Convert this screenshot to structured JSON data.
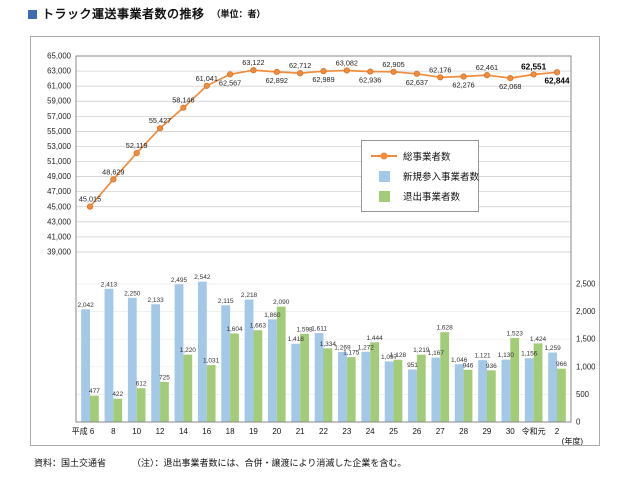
{
  "title": {
    "text": "トラック運送事業者数の推移",
    "unit": "（単位：者）"
  },
  "legend": [
    {
      "label": "総事業者数",
      "type": "line",
      "color": "#f08c3c"
    },
    {
      "label": "新規参入事業者数",
      "type": "bar",
      "color": "#a3c8e8"
    },
    {
      "label": "退出事業者数",
      "type": "bar",
      "color": "#a2cc78"
    }
  ],
  "footer": {
    "source": "資料：国土交通省",
    "note": "（注）：退出事業者数には、合併・譲渡により消滅した企業を含む。"
  },
  "chart_data": {
    "type": "combo",
    "title": "トラック運送事業者数の推移（単位：者）",
    "categories": [
      "平成 6",
      "8",
      "10",
      "12",
      "14",
      "16",
      "18",
      "19",
      "20",
      "21",
      "22",
      "23",
      "24",
      "25",
      "26",
      "27",
      "28",
      "29",
      "30",
      "令和元",
      "2"
    ],
    "x_axis_suffix": "(年度)",
    "left_axis": {
      "min": 39000,
      "max": 65000,
      "step": 2000
    },
    "right_axis": {
      "min": 0,
      "max": 2500,
      "step": 500
    },
    "grid": true,
    "legend_position": "inside-right",
    "series": [
      {
        "name": "総事業者数",
        "type": "line",
        "axis": "left",
        "color": "#f08c3c",
        "values": [
          45015,
          48629,
          52119,
          55427,
          58146,
          61041,
          62567,
          63122,
          62892,
          62712,
          62989,
          63082,
          62936,
          62905,
          62637,
          62176,
          62276,
          62461,
          62068,
          62551,
          62844
        ],
        "label_positions": [
          "above",
          "above",
          "above",
          "above",
          "above",
          "above",
          "below",
          "above",
          "below",
          "above",
          "below",
          "above",
          "below",
          "above",
          "below",
          "above",
          "below",
          "above",
          "below",
          "above",
          "below"
        ],
        "label_bold": [
          false,
          false,
          false,
          false,
          false,
          false,
          false,
          false,
          false,
          false,
          false,
          false,
          false,
          false,
          false,
          false,
          false,
          false,
          false,
          true,
          true
        ]
      },
      {
        "name": "新規参入事業者数",
        "type": "bar",
        "axis": "right",
        "color": "#a3c8e8",
        "values": [
          2042,
          2413,
          2250,
          2133,
          2495,
          2542,
          2115,
          2218,
          1860,
          1418,
          1611,
          1269,
          1272,
          1097,
          951,
          1167,
          1046,
          1121,
          1130,
          1156,
          1259
        ]
      },
      {
        "name": "退出事業者数",
        "type": "bar",
        "axis": "right",
        "color": "#a2cc78",
        "values": [
          477,
          422,
          612,
          725,
          1220,
          1031,
          1604,
          1663,
          2090,
          1598,
          1334,
          1175,
          1444,
          1128,
          1219,
          1628,
          946,
          936,
          1523,
          1424,
          966
        ]
      }
    ]
  }
}
